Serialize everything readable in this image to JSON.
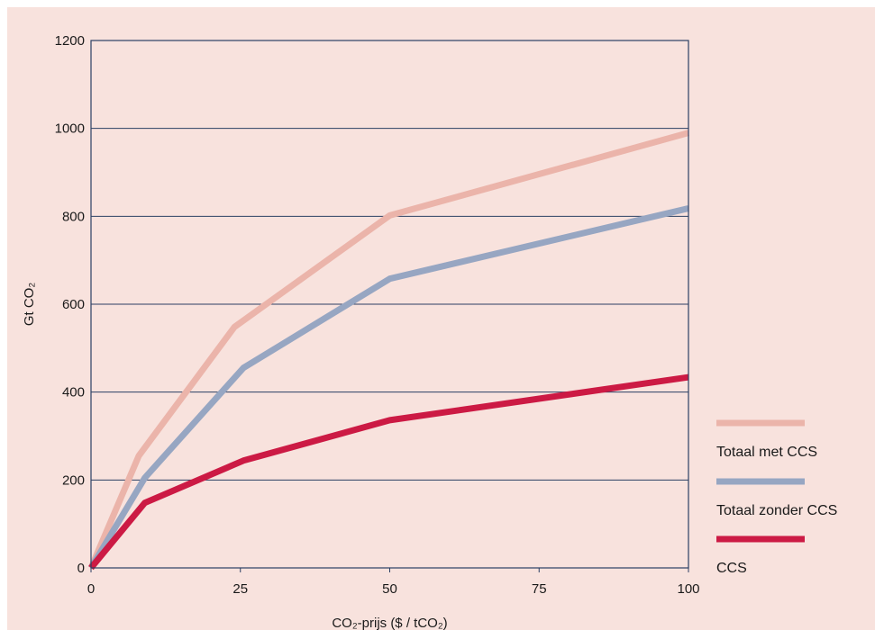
{
  "chart_data": {
    "type": "line",
    "xlabel": "CO₂-prijs ($ / tCO₂)",
    "ylabel": "Gt CO₂",
    "xlim": [
      0,
      100
    ],
    "ylim": [
      0,
      1200
    ],
    "x_ticks": [
      0,
      25,
      50,
      75,
      100
    ],
    "y_ticks": [
      0,
      200,
      400,
      600,
      800,
      1000,
      1200
    ],
    "grid": "horizontal",
    "legend_position": "right",
    "background": "#f8e2dd",
    "series": [
      {
        "name": "Totaal met CCS",
        "color": "#ebb4aa",
        "points": [
          [
            0,
            0
          ],
          [
            8,
            255
          ],
          [
            24,
            548
          ],
          [
            50,
            802
          ],
          [
            100,
            990
          ]
        ]
      },
      {
        "name": "Totaal zonder CCS",
        "color": "#97a6c2",
        "points": [
          [
            0,
            0
          ],
          [
            9,
            205
          ],
          [
            25.5,
            455
          ],
          [
            50,
            658
          ],
          [
            100,
            818
          ]
        ]
      },
      {
        "name": "CCS",
        "color": "#cc1a44",
        "points": [
          [
            0,
            0
          ],
          [
            9,
            148
          ],
          [
            25.5,
            244
          ],
          [
            50,
            336
          ],
          [
            100,
            434
          ]
        ]
      }
    ]
  }
}
